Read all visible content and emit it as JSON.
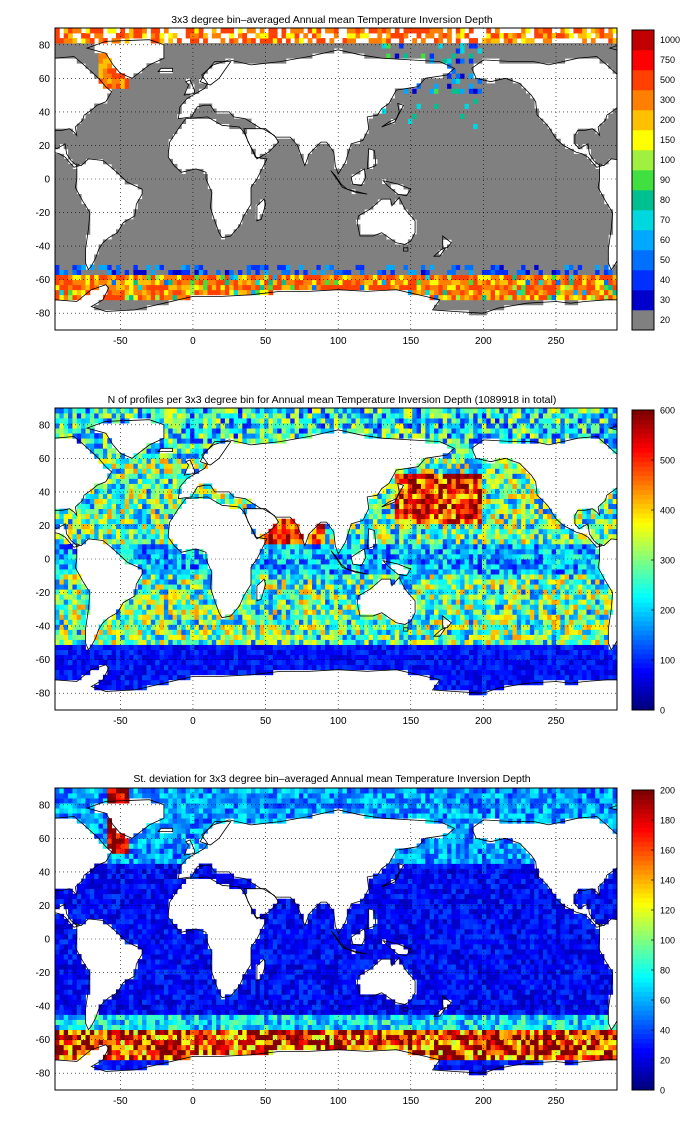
{
  "colors": {
    "land": "#ffffff",
    "no_data": "#808080",
    "coast": "#000000",
    "jet": [
      "#00008f",
      "#0000ff",
      "#0080ff",
      "#00ffff",
      "#80ff80",
      "#ffff00",
      "#ff8000",
      "#ff0000",
      "#800000"
    ]
  },
  "chart_data": [
    {
      "type": "heatmap",
      "title": "3x3 degree bin–averaged Annual mean Temperature Inversion Depth",
      "xlabel": "",
      "ylabel": "",
      "x_ticks": [
        -50,
        0,
        50,
        100,
        150,
        200,
        250
      ],
      "y_ticks": [
        -80,
        -60,
        -40,
        -20,
        0,
        20,
        40,
        60,
        80
      ],
      "xlim": [
        -95,
        292
      ],
      "ylim": [
        -90,
        90
      ],
      "grid": true,
      "colorbar": {
        "type": "discrete",
        "labels": [
          "20",
          "30",
          "40",
          "50",
          "60",
          "70",
          "80",
          "90",
          "100",
          "150",
          "200",
          "300",
          "500",
          "750",
          "1000"
        ],
        "colors": [
          "#808080",
          "#0000cc",
          "#0030ff",
          "#0070ff",
          "#00a8ff",
          "#00d8e0",
          "#00c090",
          "#40e040",
          "#a0f040",
          "#ffff00",
          "#ffc000",
          "#ff8000",
          "#ff4000",
          "#ff0000",
          "#c00000"
        ]
      },
      "field": "inversion_depth"
    },
    {
      "type": "heatmap",
      "title": "N of profiles per 3x3 degree bin for Annual mean Temperature Inversion Depth  (1089918 in total)",
      "xlabel": "",
      "ylabel": "",
      "x_ticks": [
        -50,
        0,
        50,
        100,
        150,
        200,
        250
      ],
      "y_ticks": [
        -80,
        -60,
        -40,
        -20,
        0,
        20,
        40,
        60,
        80
      ],
      "xlim": [
        -95,
        292
      ],
      "ylim": [
        -90,
        90
      ],
      "grid": true,
      "colorbar": {
        "type": "continuous",
        "range": [
          0,
          600
        ],
        "ticks": [
          0,
          100,
          200,
          300,
          400,
          500,
          600
        ]
      },
      "field": "profile_count"
    },
    {
      "type": "heatmap",
      "title": "St. deviation for 3x3 degree bin–averaged Annual mean Temperature Inversion Depth",
      "xlabel": "",
      "ylabel": "",
      "x_ticks": [
        -50,
        0,
        50,
        100,
        150,
        200,
        250
      ],
      "y_ticks": [
        -80,
        -60,
        -40,
        -20,
        0,
        20,
        40,
        60,
        80
      ],
      "xlim": [
        -95,
        292
      ],
      "ylim": [
        -90,
        90
      ],
      "grid": true,
      "colorbar": {
        "type": "continuous",
        "range": [
          0,
          200
        ],
        "ticks": [
          0,
          20,
          40,
          60,
          80,
          100,
          120,
          140,
          160,
          180,
          200
        ]
      },
      "field": "std_dev"
    }
  ]
}
